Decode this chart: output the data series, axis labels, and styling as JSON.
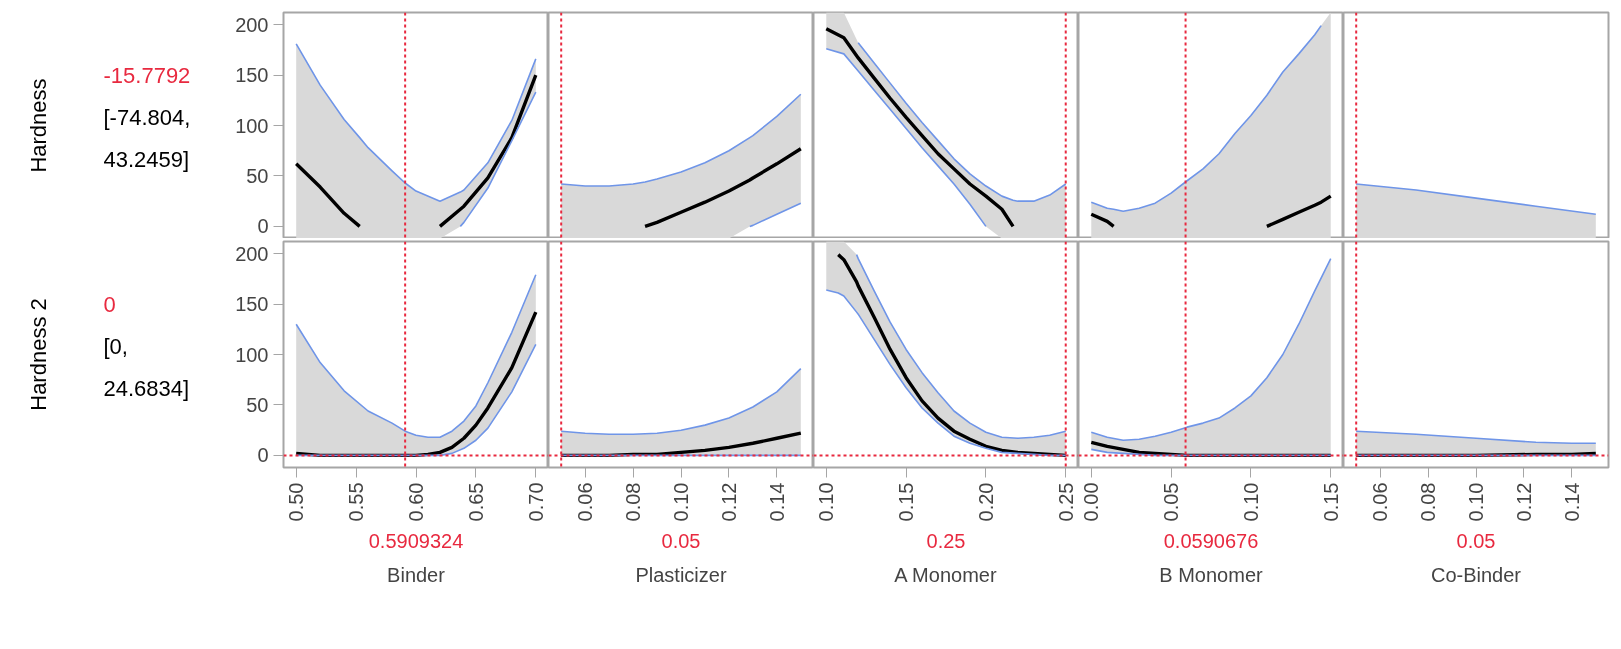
{
  "chart_data": [
    {
      "type": "line",
      "ylabel": "Hardness",
      "annotations": [
        "-15.7792",
        "[-74.804, 43.2459]"
      ],
      "tick_labels": "y",
      "xlim": [
        0.4894,
        0.7106
      ],
      "ylim": [
        -12,
        212
      ],
      "yticks": [
        0,
        50,
        100,
        150,
        200
      ],
      "x": [
        0.5,
        0.52,
        0.54,
        0.553,
        0.56,
        0.58,
        0.5909,
        0.6,
        0.62,
        0.637,
        0.64,
        0.66,
        0.68,
        0.7
      ],
      "series": [
        {
          "color": "#000000",
          "values": [
            62,
            39,
            13,
            0,
            null,
            null,
            null,
            null,
            0,
            17,
            20,
            48,
            88,
            150
          ],
          "upper": [
            181,
            140,
            106,
            88,
            78,
            55,
            43,
            35,
            25,
            34,
            36,
            63,
            105,
            166
          ],
          "lower": [
            -12,
            -12,
            -12,
            -12,
            -12,
            -12,
            -12,
            -12,
            -12,
            0,
            4,
            38,
            85,
            133
          ]
        },
        {
          "color": "#6f95e8",
          "values": [
            181,
            140,
            106,
            88,
            78,
            55,
            43,
            35,
            25,
            34,
            36,
            63,
            105,
            166
          ]
        },
        {
          "color": "#6f95e8",
          "values": [
            null,
            null,
            null,
            null,
            null,
            null,
            null,
            null,
            null,
            0,
            4,
            38,
            85,
            133
          ]
        }
      ],
      "ref_lines": [
        {
          "axis": "x",
          "value": 0.5909324,
          "color": "#e8293f",
          "line_style": "dotted"
        }
      ]
    },
    {
      "type": "line",
      "tick_labels": false,
      "xlim": [
        0.0447,
        0.1553
      ],
      "ylim": [
        -12,
        212
      ],
      "x": [
        0.05,
        0.06,
        0.07,
        0.08,
        0.085,
        0.09,
        0.1,
        0.11,
        0.12,
        0.1287,
        0.13,
        0.14,
        0.15
      ],
      "series": [
        {
          "color": "#000000",
          "values": [
            null,
            null,
            null,
            null,
            0,
            4,
            14,
            24,
            35,
            46,
            48,
            62,
            77
          ],
          "upper": [
            42,
            40,
            40,
            42,
            44,
            47,
            54,
            63,
            75,
            88,
            90,
            109,
            131
          ],
          "lower": [
            -12,
            -12,
            -12,
            -12,
            -12,
            -12,
            -12,
            -12,
            -12,
            0,
            1,
            12,
            23
          ]
        },
        {
          "color": "#6f95e8",
          "values": [
            42,
            40,
            40,
            42,
            44,
            47,
            54,
            63,
            75,
            88,
            90,
            109,
            131
          ]
        },
        {
          "color": "#6f95e8",
          "values": [
            null,
            null,
            null,
            null,
            null,
            null,
            null,
            null,
            null,
            0,
            1,
            12,
            23
          ]
        }
      ],
      "ref_lines": [
        {
          "axis": "x",
          "value": 0.05,
          "color": "#e8293f",
          "line_style": "dotted"
        }
      ]
    },
    {
      "type": "line",
      "tick_labels": false,
      "xlim": [
        0.092,
        0.258
      ],
      "ylim": [
        -12,
        212
      ],
      "x": [
        0.1,
        0.111,
        0.12,
        0.13,
        0.14,
        0.15,
        0.16,
        0.17,
        0.18,
        0.19,
        0.2,
        0.21,
        0.217,
        0.22,
        0.23,
        0.24,
        0.25
      ],
      "series": [
        {
          "color": "#000000",
          "values": [
            196,
            187,
            167,
            147,
            127,
            108,
            90,
            72,
            57,
            42,
            30,
            17,
            0,
            null,
            null,
            null,
            null
          ],
          "upper": [
            212,
            212,
            182,
            162,
            142,
            122,
            103,
            85,
            67,
            52,
            40,
            30,
            26,
            25,
            25,
            31,
            42
          ],
          "lower": [
            176,
            171,
            154,
            135,
            116,
            97,
            78,
            60,
            42,
            22,
            0,
            -12,
            -12,
            -12,
            -12,
            -12,
            -12
          ]
        },
        {
          "color": "#6f95e8",
          "values": [
            null,
            null,
            182,
            162,
            142,
            122,
            103,
            85,
            67,
            52,
            40,
            30,
            26,
            25,
            25,
            31,
            42
          ]
        },
        {
          "color": "#6f95e8",
          "values": [
            176,
            171,
            154,
            135,
            116,
            97,
            78,
            60,
            42,
            22,
            0,
            null,
            null,
            null,
            null,
            null,
            null
          ]
        }
      ],
      "ref_lines": [
        {
          "axis": "x",
          "value": 0.25,
          "color": "#e8293f",
          "line_style": "dotted"
        }
      ]
    },
    {
      "type": "line",
      "tick_labels": false,
      "xlim": [
        -0.008,
        0.158
      ],
      "ylim": [
        -12,
        212
      ],
      "x": [
        0,
        0.01,
        0.014,
        0.02,
        0.03,
        0.04,
        0.05,
        0.059,
        0.07,
        0.08,
        0.09,
        0.1,
        0.11,
        0.12,
        0.13,
        0.14,
        0.144,
        0.15
      ],
      "series": [
        {
          "color": "#000000",
          "values": [
            12,
            5,
            0,
            null,
            null,
            null,
            null,
            null,
            null,
            null,
            null,
            null,
            0,
            7,
            14,
            21,
            24,
            30
          ],
          "upper": [
            24,
            18,
            17,
            15,
            18,
            23,
            33,
            44,
            57,
            72,
            92,
            110,
            130,
            153,
            171,
            190,
            199,
            212
          ],
          "lower": [
            -12,
            -12,
            -12,
            -12,
            -12,
            -12,
            -12,
            -12,
            -12,
            -12,
            -12,
            -12,
            -12,
            -12,
            -12,
            -12,
            -12,
            -12
          ]
        },
        {
          "color": "#6f95e8",
          "values": [
            24,
            18,
            17,
            15,
            18,
            23,
            33,
            44,
            57,
            72,
            92,
            110,
            130,
            153,
            171,
            190,
            199,
            null
          ]
        }
      ],
      "ref_lines": [
        {
          "axis": "x",
          "value": 0.0590676,
          "color": "#e8293f",
          "line_style": "dotted"
        }
      ]
    },
    {
      "type": "line",
      "tick_labels": false,
      "xlim": [
        0.0447,
        0.1553
      ],
      "ylim": [
        -12,
        212
      ],
      "x": [
        0.05,
        0.075,
        0.1,
        0.125,
        0.15
      ],
      "series": [
        {
          "color": "#000000",
          "values": [
            null,
            null,
            null,
            null,
            null
          ],
          "upper": [
            42,
            36,
            28,
            20,
            12
          ],
          "lower": [
            -12,
            -12,
            -12,
            -12,
            -12
          ]
        },
        {
          "color": "#6f95e8",
          "values": [
            42,
            36,
            28,
            20,
            12
          ]
        }
      ],
      "ref_lines": [
        {
          "axis": "x",
          "value": 0.05,
          "color": "#e8293f",
          "line_style": "dotted"
        }
      ]
    },
    {
      "type": "line",
      "ylabel": "Hardness 2",
      "annotations": [
        "0",
        "[0, 24.6834]"
      ],
      "xlabel": "Binder",
      "xlim": [
        0.4894,
        0.7106
      ],
      "ylim": [
        -12,
        212
      ],
      "yticks": [
        0,
        50,
        100,
        150,
        200
      ],
      "xticks": [
        {
          "value": 0.5,
          "label": "0.50"
        },
        0.55,
        {
          "value": 0.6,
          "label": "0.60"
        },
        0.65,
        {
          "value": 0.7,
          "label": "0.70"
        }
      ],
      "x": [
        0.5,
        0.52,
        0.54,
        0.56,
        0.58,
        0.5909,
        0.6,
        0.61,
        0.62,
        0.63,
        0.64,
        0.65,
        0.66,
        0.68,
        0.7
      ],
      "series": [
        {
          "color": "#000000",
          "values": [
            2,
            0,
            0,
            0,
            0,
            0,
            0,
            1,
            3,
            8,
            17,
            30,
            47,
            87,
            142
          ],
          "upper": [
            130,
            92,
            64,
            44,
            32,
            24,
            20,
            18,
            18,
            24,
            34,
            49,
            72,
            122,
            179
          ],
          "lower": [
            0,
            0,
            0,
            0,
            0,
            0,
            0,
            0,
            0,
            2,
            7,
            15,
            27,
            63,
            110
          ]
        },
        {
          "color": "#6f95e8",
          "values": [
            130,
            92,
            64,
            44,
            32,
            24,
            20,
            18,
            18,
            24,
            34,
            49,
            72,
            122,
            179
          ]
        },
        {
          "color": "#6f95e8",
          "values": [
            0,
            0,
            0,
            0,
            0,
            0,
            0,
            0,
            0,
            2,
            7,
            15,
            27,
            63,
            110
          ]
        }
      ],
      "ref_lines": [
        {
          "axis": "x",
          "value": 0.5909324,
          "label": "0.5909324",
          "color": "#e8293f",
          "line_style": "dotted"
        },
        {
          "axis": "y",
          "value": 0,
          "color": "#e8293f",
          "line_style": "dotted"
        }
      ]
    },
    {
      "type": "line",
      "xlabel": "Plasticizer",
      "tick_labels": "x",
      "xlim": [
        0.0447,
        0.1553
      ],
      "ylim": [
        -12,
        212
      ],
      "xticks": [
        0.06,
        0.08,
        {
          "value": 0.1,
          "label": "0.10"
        },
        0.12,
        0.14
      ],
      "x": [
        0.05,
        0.06,
        0.07,
        0.08,
        0.09,
        0.1,
        0.11,
        0.12,
        0.13,
        0.14,
        0.15
      ],
      "series": [
        {
          "color": "#000000",
          "values": [
            0,
            0,
            0,
            1,
            1,
            3,
            5,
            8,
            12,
            17,
            22
          ],
          "upper": [
            24,
            22,
            21,
            21,
            22,
            25,
            30,
            37,
            48,
            63,
            86
          ],
          "lower": [
            0,
            0,
            0,
            0,
            0,
            0,
            0,
            0,
            0,
            0,
            0
          ]
        },
        {
          "color": "#6f95e8",
          "values": [
            24,
            22,
            21,
            21,
            22,
            25,
            30,
            37,
            48,
            63,
            86
          ]
        },
        {
          "color": "#6f95e8",
          "values": [
            0,
            0,
            0,
            0,
            0,
            0,
            0,
            0,
            0,
            0,
            0
          ]
        }
      ],
      "ref_lines": [
        {
          "axis": "x",
          "value": 0.05,
          "label": "0.05",
          "color": "#e8293f",
          "line_style": "dotted"
        },
        {
          "axis": "y",
          "value": 0,
          "color": "#e8293f",
          "line_style": "dotted"
        }
      ]
    },
    {
      "type": "line",
      "xlabel": "A Monomer",
      "tick_labels": "x",
      "xlim": [
        0.092,
        0.258
      ],
      "ylim": [
        -12,
        212
      ],
      "xticks": [
        {
          "value": 0.1,
          "label": "0.10"
        },
        0.15,
        {
          "value": 0.2,
          "label": "0.20"
        },
        0.25
      ],
      "x": [
        0.1,
        0.1075,
        0.111,
        0.119,
        0.12,
        0.13,
        0.14,
        0.15,
        0.16,
        0.17,
        0.18,
        0.19,
        0.2,
        0.21,
        0.22,
        0.23,
        0.24,
        0.25
      ],
      "series": [
        {
          "color": "#000000",
          "values": [
            null,
            199,
            194,
            172,
            168,
            137,
            105,
            77,
            54,
            37,
            24,
            16,
            9,
            5,
            3,
            2,
            1,
            0
          ],
          "upper": [
            212,
            212,
            212,
            199,
            195,
            163,
            132,
            105,
            82,
            62,
            44,
            32,
            23,
            18,
            17,
            18,
            20,
            24
          ],
          "lower": [
            164,
            161,
            158,
            142,
            140,
            115,
            90,
            67,
            47,
            32,
            19,
            12,
            7,
            3,
            2,
            1,
            0,
            0
          ]
        },
        {
          "color": "#6f95e8",
          "values": [
            null,
            null,
            null,
            199,
            195,
            163,
            132,
            105,
            82,
            62,
            44,
            32,
            23,
            18,
            17,
            18,
            20,
            24
          ]
        },
        {
          "color": "#6f95e8",
          "values": [
            164,
            161,
            158,
            142,
            140,
            115,
            90,
            67,
            47,
            32,
            19,
            12,
            7,
            3,
            2,
            1,
            0,
            0
          ]
        }
      ],
      "ref_lines": [
        {
          "axis": "x",
          "value": 0.25,
          "label": "0.25",
          "color": "#e8293f",
          "line_style": "dotted"
        },
        {
          "axis": "y",
          "value": 0,
          "color": "#e8293f",
          "line_style": "dotted"
        }
      ]
    },
    {
      "type": "line",
      "xlabel": "B Monomer",
      "tick_labels": "x",
      "xlim": [
        -0.008,
        0.158
      ],
      "ylim": [
        -12,
        212
      ],
      "xticks": [
        {
          "value": 0,
          "label": "0.00"
        },
        0.05,
        {
          "value": 0.1,
          "label": "0.10"
        },
        0.15
      ],
      "x": [
        0,
        0.01,
        0.02,
        0.03,
        0.04,
        0.05,
        0.06,
        0.07,
        0.08,
        0.09,
        0.1,
        0.11,
        0.12,
        0.13,
        0.14,
        0.15
      ],
      "series": [
        {
          "color": "#000000",
          "values": [
            13,
            9,
            6,
            3,
            2,
            1,
            0,
            0,
            0,
            0,
            0,
            0,
            0,
            0,
            0,
            0
          ],
          "upper": [
            23,
            18,
            15,
            16,
            19,
            23,
            28,
            32,
            37,
            47,
            59,
            77,
            100,
            130,
            163,
            195
          ],
          "lower": [
            6,
            3,
            2,
            1,
            0,
            0,
            0,
            0,
            0,
            0,
            0,
            0,
            0,
            0,
            0,
            0
          ]
        },
        {
          "color": "#6f95e8",
          "values": [
            23,
            18,
            15,
            16,
            19,
            23,
            28,
            32,
            37,
            47,
            59,
            77,
            100,
            130,
            163,
            195
          ]
        },
        {
          "color": "#6f95e8",
          "values": [
            6,
            3,
            2,
            1,
            0,
            0,
            0,
            0,
            0,
            0,
            0,
            0,
            0,
            0,
            0,
            0
          ]
        }
      ],
      "ref_lines": [
        {
          "axis": "x",
          "value": 0.0590676,
          "label": "0.0590676",
          "color": "#e8293f",
          "line_style": "dotted"
        },
        {
          "axis": "y",
          "value": 0,
          "color": "#e8293f",
          "line_style": "dotted"
        }
      ]
    },
    {
      "type": "line",
      "xlabel": "Co-Binder",
      "tick_labels": "x",
      "xlim": [
        0.0447,
        0.1553
      ],
      "ylim": [
        -12,
        212
      ],
      "xticks": [
        0.06,
        0.08,
        {
          "value": 0.1,
          "label": "0.10"
        },
        0.12,
        0.14
      ],
      "x": [
        0.05,
        0.075,
        0.1,
        0.125,
        0.14,
        0.15
      ],
      "series": [
        {
          "color": "#000000",
          "values": [
            0,
            0,
            0,
            1,
            1,
            2
          ],
          "upper": [
            24,
            21,
            17,
            13,
            12,
            12
          ],
          "lower": [
            0,
            0,
            0,
            0,
            0,
            0
          ]
        },
        {
          "color": "#6f95e8",
          "values": [
            24,
            21,
            17,
            13,
            12,
            12
          ]
        },
        {
          "color": "#6f95e8",
          "values": [
            0,
            0,
            0,
            0,
            0,
            0
          ]
        }
      ],
      "ref_lines": [
        {
          "axis": "x",
          "value": 0.05,
          "label": "0.05",
          "color": "#e8293f",
          "line_style": "dotted"
        },
        {
          "axis": "y",
          "value": 0,
          "color": "#e8293f",
          "line_style": "dotted"
        }
      ]
    }
  ]
}
